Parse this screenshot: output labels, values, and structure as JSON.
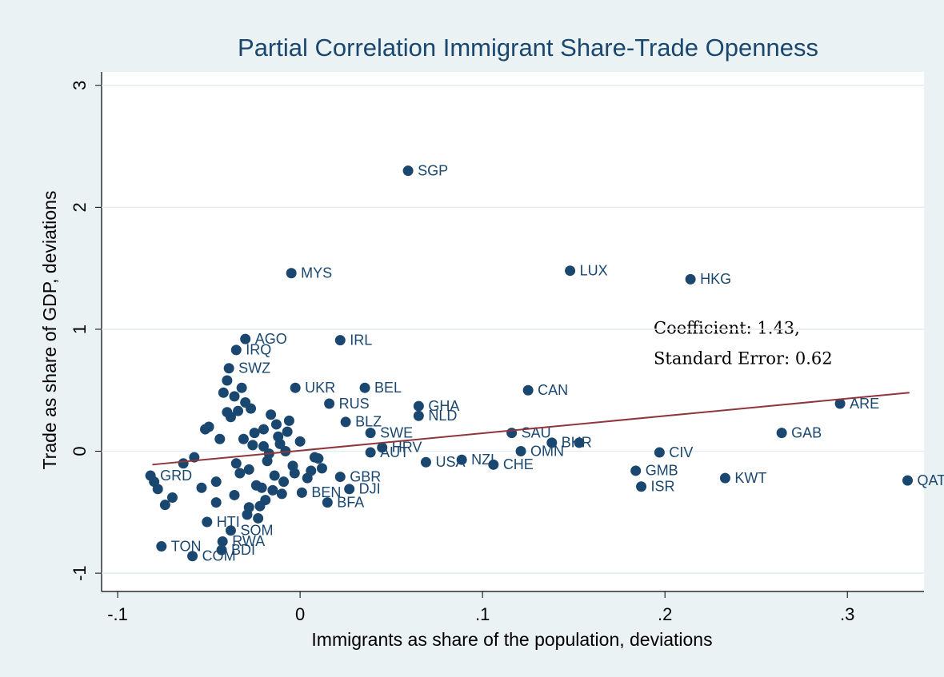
{
  "chart_data": {
    "type": "scatter",
    "title": "Partial Correlation Immigrant Share-Trade Openness",
    "x_label": "Immigrants as share of the population, deviations",
    "y_label": "Trade as share of GDP, deviations",
    "annotations": [
      "Coefficient: 1.43,",
      "Standard Error: 0.62"
    ],
    "xlim": [
      -0.1088,
      0.342
    ],
    "ylim": [
      -1.15,
      3.11
    ],
    "xticks": [
      {
        "value": -0.1,
        "label": "-.1"
      },
      0,
      {
        "value": 0.1,
        "label": ".1"
      },
      {
        "value": 0.2,
        "label": ".2"
      },
      {
        "value": 0.3,
        "label": ".3"
      }
    ],
    "yticks": [
      -1,
      0,
      1,
      2,
      3
    ],
    "grid": true,
    "color": "#1a476f",
    "x": [
      0.0592,
      -0.0048,
      0.148,
      0.214,
      -0.03,
      0.022,
      -0.035,
      -0.039,
      -0.0026,
      0.0355,
      0.125,
      0.016,
      0.065,
      0.065,
      0.025,
      0.296,
      0.264,
      0.116,
      0.0386,
      0.045,
      0.138,
      0.153,
      0.197,
      0.121,
      0.106,
      0.0886,
      0.069,
      0.184,
      0.187,
      0.233,
      0.333,
      0.0386,
      0.027,
      0.015,
      0.022,
      0.001,
      -0.038,
      -0.051,
      -0.0425,
      -0.043,
      -0.059,
      -0.076,
      -0.082,
      -0.08,
      -0.078,
      -0.074,
      -0.07,
      -0.064,
      -0.058,
      -0.054,
      -0.05,
      -0.046,
      -0.044,
      -0.042,
      -0.04,
      -0.036,
      -0.034,
      -0.032,
      -0.03,
      -0.028,
      -0.026,
      -0.024,
      -0.022,
      -0.02,
      -0.018,
      -0.016,
      -0.014,
      -0.012,
      -0.01,
      -0.008,
      -0.006,
      -0.004,
      0.0,
      0.004,
      0.008,
      0.012,
      -0.038,
      -0.033,
      -0.029,
      -0.025,
      -0.021,
      -0.017,
      -0.013,
      -0.009,
      -0.035,
      -0.027,
      -0.019,
      -0.011,
      -0.003,
      -0.031,
      -0.023,
      -0.015,
      -0.007,
      -0.04,
      -0.052,
      -0.046,
      0.006,
      0.01,
      -0.036,
      -0.028,
      -0.02
    ],
    "values": [
      2.3,
      1.46,
      1.48,
      1.41,
      0.92,
      0.91,
      0.83,
      0.68,
      0.52,
      0.52,
      0.5,
      0.39,
      0.37,
      0.29,
      0.24,
      0.39,
      0.15,
      0.15,
      0.15,
      0.03,
      0.07,
      0.07,
      -0.01,
      0.0,
      -0.11,
      -0.07,
      -0.09,
      -0.16,
      -0.29,
      -0.22,
      -0.24,
      -0.01,
      -0.31,
      -0.42,
      -0.21,
      -0.34,
      -0.65,
      -0.58,
      -0.74,
      -0.81,
      -0.86,
      -0.78,
      -0.2,
      -0.25,
      -0.31,
      -0.44,
      -0.38,
      -0.1,
      -0.05,
      -0.3,
      0.2,
      -0.42,
      0.1,
      0.48,
      0.58,
      0.45,
      0.33,
      0.52,
      0.4,
      -0.15,
      0.05,
      -0.28,
      -0.45,
      0.18,
      -0.08,
      0.3,
      -0.2,
      0.12,
      -0.35,
      0.0,
      0.25,
      -0.12,
      0.08,
      -0.22,
      -0.05,
      -0.14,
      0.28,
      -0.18,
      -0.52,
      0.15,
      -0.3,
      -0.02,
      0.22,
      -0.25,
      -0.1,
      0.35,
      -0.4,
      0.06,
      -0.18,
      0.1,
      -0.55,
      -0.32,
      0.16,
      0.32,
      0.18,
      -0.25,
      -0.16,
      -0.06,
      -0.36,
      -0.46,
      0.04
    ],
    "point_labels": [
      "SGP",
      "MYS",
      "LUX",
      "HKG",
      "AGO",
      "IRL",
      "IRQ",
      "SWZ",
      "UKR",
      "BEL",
      "CAN",
      "RUS",
      "GHA",
      "NLD",
      "BLZ",
      "ARE",
      "GAB",
      "SAU",
      "SWE",
      "HRV",
      "BHR",
      null,
      "CIV",
      "OMN",
      "CHE",
      "NZL",
      "USA",
      "GMB",
      "ISR",
      "KWT",
      "QAT",
      "AUT",
      "DJI",
      "BFA",
      "GBR",
      "BEN",
      "SOM",
      "HTI",
      "RWA",
      "BDI",
      "COM",
      "TON",
      "GRD",
      null,
      null,
      null,
      null,
      null,
      null,
      null,
      null,
      null,
      null,
      null,
      null,
      null,
      null,
      null,
      null,
      null,
      null,
      null,
      null,
      null,
      null,
      null,
      null,
      null,
      null,
      null,
      null,
      null,
      null,
      null,
      null,
      null,
      null,
      null,
      null,
      null,
      null,
      null,
      null,
      null,
      null,
      null,
      null,
      null,
      null,
      null,
      null,
      null,
      null,
      null,
      null,
      null,
      null,
      null,
      null,
      null,
      null
    ],
    "fit_line": {
      "color": "#90353b",
      "x": [
        -0.081,
        0.334
      ],
      "values": [
        -0.11,
        0.48
      ]
    }
  }
}
